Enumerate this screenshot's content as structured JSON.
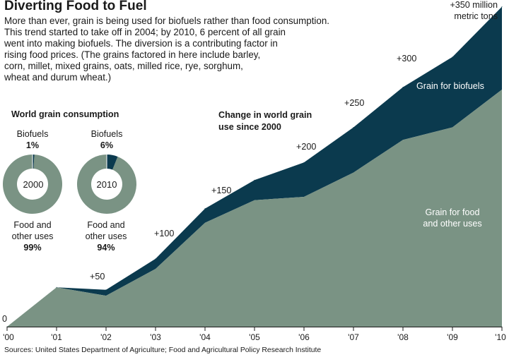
{
  "title": "Diverting Food to Fuel",
  "intro_lines": [
    "More than ever, grain is being used for biofuels rather than food consumption.",
    "This trend started to take off in 2004; by 2010, 6 percent of all grain",
    "went into making biofuels. The diversion is a contributing factor in",
    "rising food prices. (The grains factored in here include barley,",
    "corn, millet, mixed grains, oats, milled rice, rye, sorghum,",
    "wheat and durum wheat.)"
  ],
  "source": "Sources: United States Department of Agriculture; Food and Agricultural Policy Research Institute",
  "colors": {
    "biofuels": "#0b3a4e",
    "food": "#7a9384",
    "donut_food": "#7a9384",
    "donut_bio": "#0b3a4e",
    "axis": "#1a1a1a"
  },
  "donuts": {
    "heading": "World grain consumption",
    "items": [
      {
        "year": "2000",
        "bio_label": "Biofuels",
        "bio_pct_label": "1%",
        "bio_share": 0.01,
        "food_label_line1": "Food and",
        "food_label_line2": "other uses",
        "food_pct_label": "99%"
      },
      {
        "year": "2010",
        "bio_label": "Biofuels",
        "bio_pct_label": "6%",
        "bio_share": 0.06,
        "food_label_line1": "Food and",
        "food_label_line2": "other uses",
        "food_pct_label": "94%"
      }
    ]
  },
  "chart_data": {
    "type": "area",
    "title_line1": "Change in world grain",
    "title_line2": "use since 2000",
    "x": [
      "'00",
      "'01",
      "'02",
      "'03",
      "'04",
      "'05",
      "'06",
      "'07",
      "'08",
      "'09",
      "'10"
    ],
    "series": [
      {
        "name": "Grain for food and other uses",
        "label_line1": "Grain for food",
        "label_line2": "and other uses",
        "values": [
          0,
          47,
          37,
          69,
          124,
          151,
          155,
          184,
          223,
          238,
          283
        ]
      },
      {
        "name": "Grain for biofuels",
        "label_line1": "Grain for biofuels",
        "values": [
          0,
          0,
          7,
          12,
          17,
          24,
          41,
          54,
          63,
          84,
          99
        ]
      }
    ],
    "stacked": true,
    "ylim": [
      0,
      390
    ],
    "y_annotations": [
      {
        "label": "0",
        "value": 0,
        "x_index": 0
      },
      {
        "label": "+50",
        "value": 50,
        "x_index": 2
      },
      {
        "label": "+100",
        "value": 100,
        "x_index": 3
      },
      {
        "label": "+150",
        "value": 150,
        "x_index": 4
      },
      {
        "label": "+200",
        "value": 200,
        "x_index": 6
      },
      {
        "label": "+250",
        "value": 250,
        "x_index": 7
      },
      {
        "label": "+300",
        "value": 300,
        "x_index": 8
      }
    ],
    "top_annotation_line1": "+350 million",
    "top_annotation_line2": "metric tons",
    "grid": false,
    "legend": "inline labels"
  }
}
